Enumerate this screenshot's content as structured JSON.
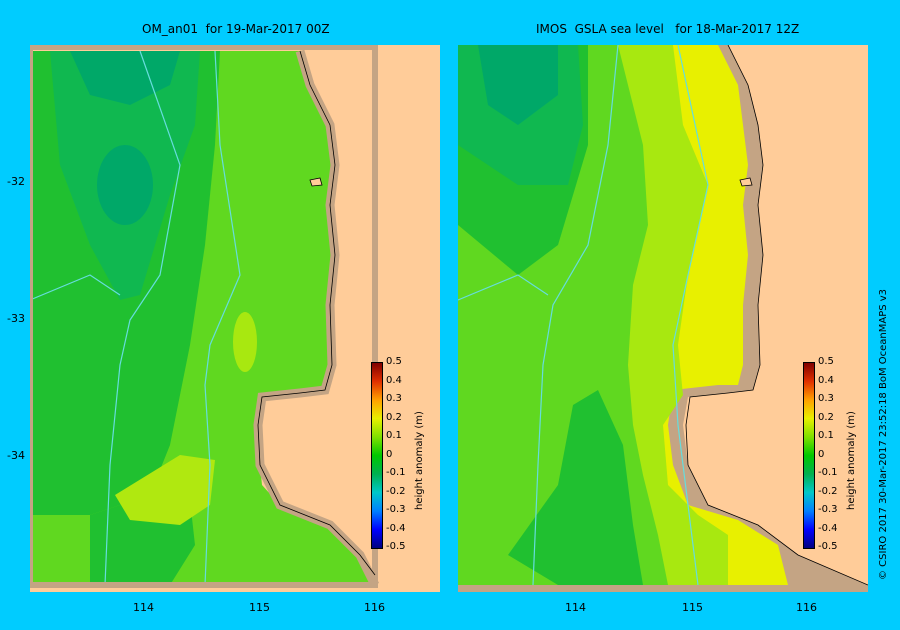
{
  "left_panel": {
    "title": "OM_an01  for 19-Mar-2017 00Z"
  },
  "right_panel": {
    "title": "IMOS  GSLA sea level   for 18-Mar-2017 12Z"
  },
  "axes": {
    "lat_ticks": [
      "-32",
      "-33",
      "-34"
    ],
    "lon_ticks": [
      "114",
      "115",
      "116"
    ]
  },
  "colorbar": {
    "label": "height anomaly  (m)",
    "ticks": [
      "0.5",
      "0.4",
      "0.3",
      "0.2",
      "0.1",
      "0",
      "-0.1",
      "-0.2",
      "-0.3",
      "-0.4",
      "-0.5"
    ],
    "colors": [
      "#000080",
      "#0000ff",
      "#0080ff",
      "#00c8c8",
      "#00b050",
      "#00c800",
      "#80e000",
      "#e8f000",
      "#ffa000",
      "#e03000",
      "#800000"
    ]
  },
  "credit": "© CSIRO 2017   30-Mar-2017 23:52:18 BoM OceanMAPS v3",
  "colors": {
    "background": "#00ccff",
    "land": "#ffcc99",
    "coast_shelf": "#c4a484",
    "bathymetry": "#66dddd"
  }
}
